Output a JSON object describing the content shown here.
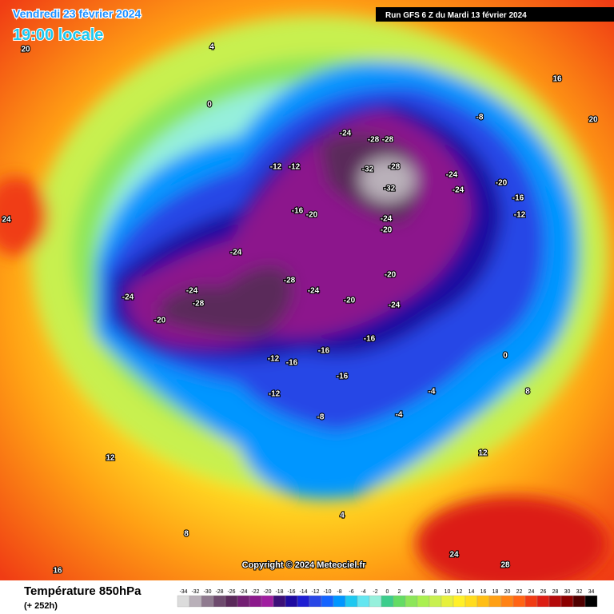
{
  "header": {
    "date": "Vendredi 23 février 2024",
    "time": "19:00 locale",
    "run": "Run GFS 6 Z du Mardi 13 février 2024"
  },
  "copyright": "Copyright © 2024 Meteociel.fr",
  "legend": {
    "title": "Température 850hPa",
    "subtitle": "(+ 252h)",
    "ticks": [
      -34,
      -32,
      -30,
      -28,
      -26,
      -24,
      -22,
      -20,
      -18,
      -16,
      -14,
      -12,
      -10,
      -8,
      -6,
      -4,
      -2,
      0,
      2,
      4,
      6,
      8,
      10,
      12,
      14,
      16,
      18,
      20,
      22,
      24,
      26,
      28,
      30,
      32,
      34
    ],
    "colors": [
      "#dcdcdc",
      "#b9b0b9",
      "#8f7a8f",
      "#6e4a6e",
      "#5a2a5a",
      "#731f73",
      "#8c198c",
      "#a01ea0",
      "#3c0f78",
      "#1e0aa0",
      "#1e1ed2",
      "#2846e6",
      "#1464ff",
      "#0096ff",
      "#1ec8f0",
      "#64e6f0",
      "#96f0dc",
      "#3ccd8c",
      "#64dc64",
      "#8ce65a",
      "#aaf050",
      "#c8f050",
      "#e6f03c",
      "#fff028",
      "#ffdc1e",
      "#ffbe14",
      "#ffa014",
      "#ff8214",
      "#ff6414",
      "#f03c14",
      "#dc1e14",
      "#b40a0a",
      "#8c0000",
      "#500000",
      "#000000"
    ]
  },
  "map_labels": [
    -24,
    -28,
    -28,
    -32,
    -32,
    -28,
    -24,
    -24,
    -20,
    -16,
    -12,
    -8,
    -12,
    -12,
    -16,
    -20,
    -24,
    -20,
    -24,
    -28,
    -24,
    -20,
    -24,
    -20,
    -16,
    -16,
    -24,
    -28,
    -24,
    -20,
    -12,
    -16,
    -16,
    -12,
    -8,
    -4,
    -4,
    0,
    4,
    8,
    12,
    16,
    20,
    24,
    16,
    20,
    24,
    28,
    12,
    8,
    4,
    0
  ]
}
